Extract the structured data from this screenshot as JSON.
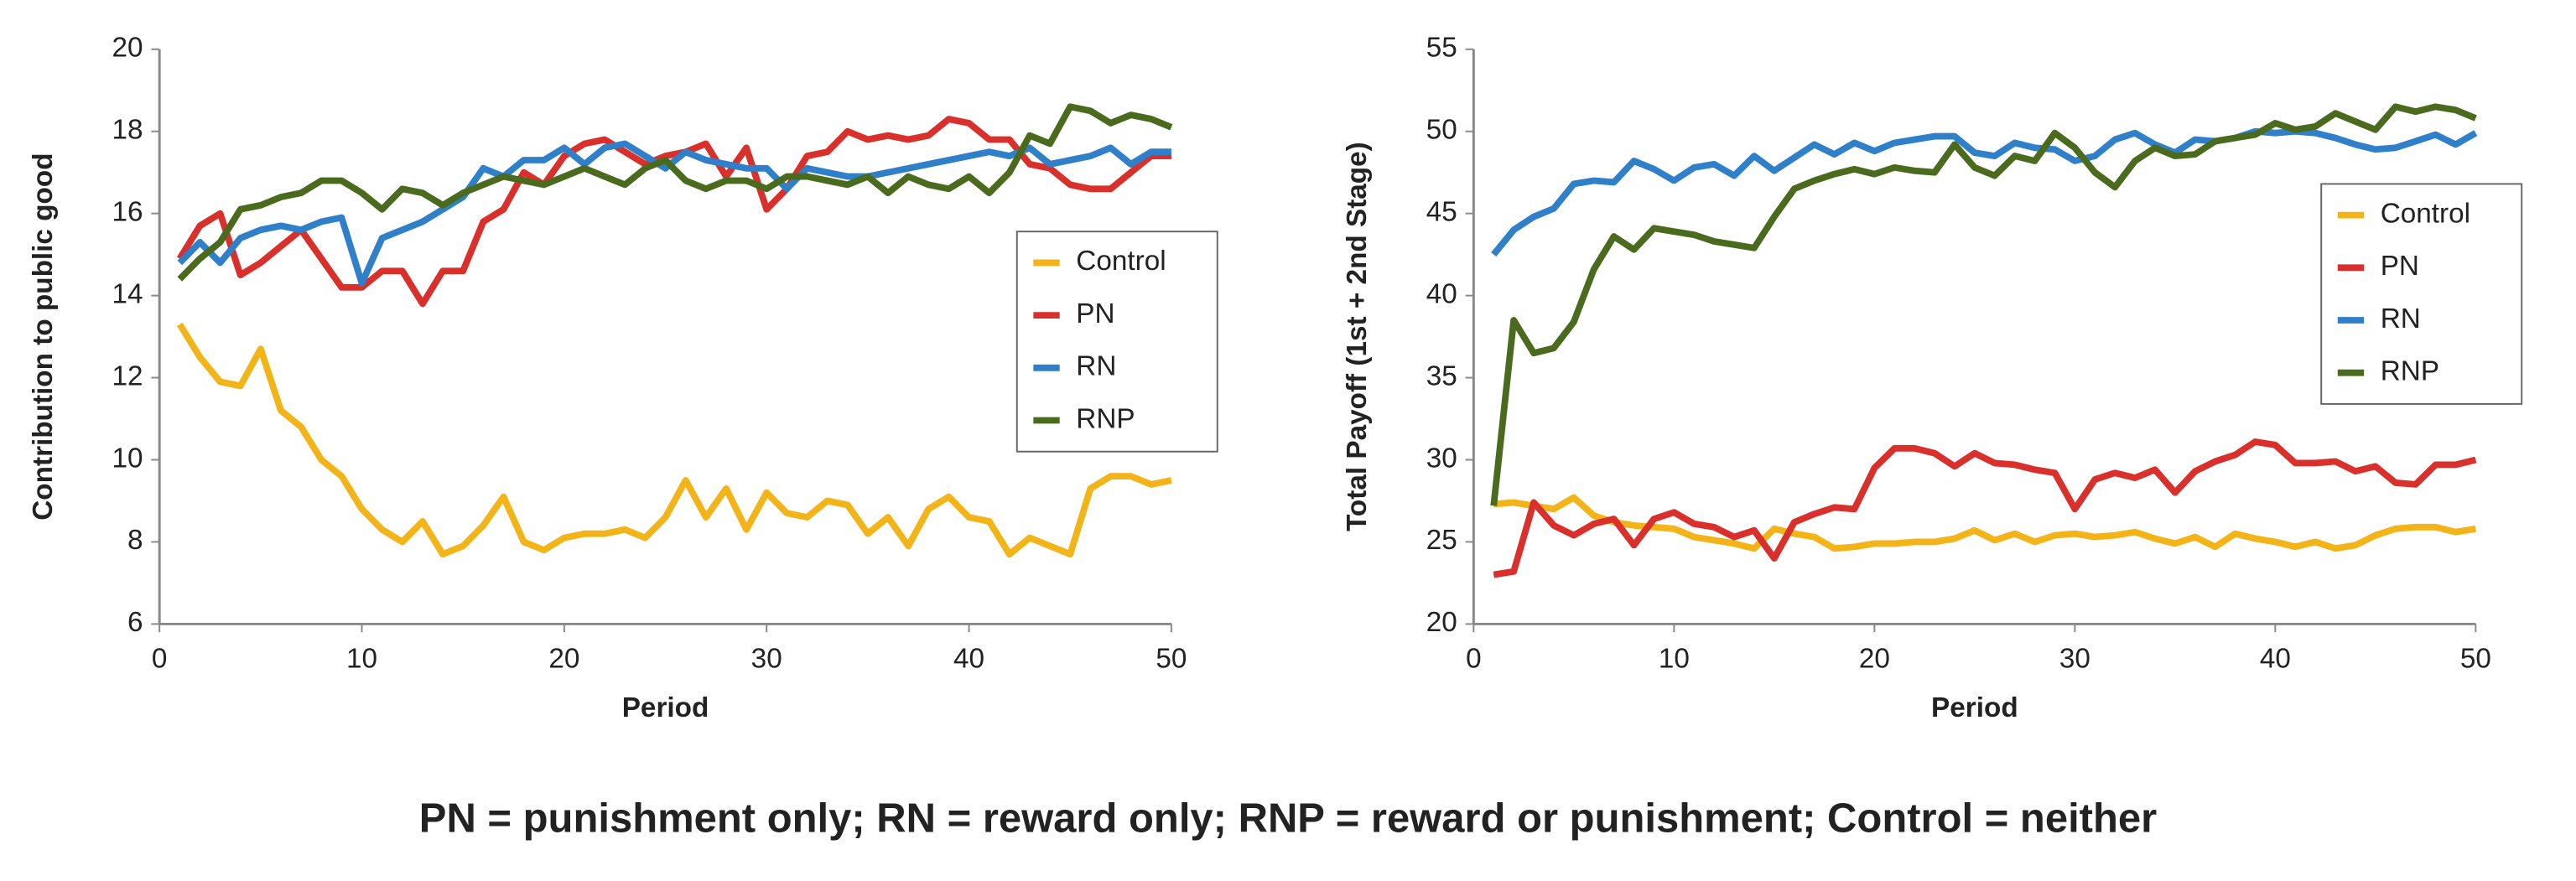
{
  "caption": "PN = punishment only; RN = reward only; RNP = reward or punishment; Control = neither",
  "chart_data": [
    {
      "type": "line",
      "x_label": "Period",
      "y_label": "Contribution to public good",
      "x": [
        1,
        2,
        3,
        4,
        5,
        6,
        7,
        8,
        9,
        10,
        11,
        12,
        13,
        14,
        15,
        16,
        17,
        18,
        19,
        20,
        21,
        22,
        23,
        24,
        25,
        26,
        27,
        28,
        29,
        30,
        31,
        32,
        33,
        34,
        35,
        36,
        37,
        38,
        39,
        40,
        41,
        42,
        43,
        44,
        45,
        46,
        47,
        48,
        49,
        50
      ],
      "xlim": [
        0,
        50
      ],
      "xticks": [
        0,
        10,
        20,
        30,
        40,
        50
      ],
      "ylim": [
        6,
        20
      ],
      "yticks": [
        6,
        8,
        10,
        12,
        14,
        16,
        18,
        20
      ],
      "grid": false,
      "legend": "center right",
      "series": [
        {
          "name": "Control",
          "color": "#f2b418",
          "values": [
            13.3,
            12.5,
            11.9,
            11.8,
            12.7,
            11.2,
            10.8,
            10.0,
            9.6,
            8.8,
            8.3,
            8.0,
            8.5,
            7.7,
            7.9,
            8.4,
            9.1,
            8.0,
            7.8,
            8.1,
            8.2,
            8.2,
            8.3,
            8.1,
            8.6,
            9.5,
            8.6,
            9.3,
            8.3,
            9.2,
            8.7,
            8.6,
            9.0,
            8.9,
            8.2,
            8.6,
            7.9,
            8.8,
            9.1,
            8.6,
            8.5,
            7.7,
            8.1,
            7.9,
            7.7,
            9.3,
            9.6,
            9.6,
            9.4,
            9.5
          ]
        },
        {
          "name": "PN",
          "color": "#d9302b",
          "values": [
            14.9,
            15.7,
            16.0,
            14.5,
            14.8,
            15.2,
            15.6,
            14.9,
            14.2,
            14.2,
            14.6,
            14.6,
            13.8,
            14.6,
            14.6,
            15.8,
            16.1,
            17.0,
            16.7,
            17.4,
            17.7,
            17.8,
            17.5,
            17.2,
            17.4,
            17.5,
            17.7,
            16.9,
            17.6,
            16.1,
            16.6,
            17.4,
            17.5,
            18.0,
            17.8,
            17.9,
            17.8,
            17.9,
            18.3,
            18.2,
            17.8,
            17.8,
            17.2,
            17.1,
            16.7,
            16.6,
            16.6,
            17.0,
            17.4,
            17.4
          ]
        },
        {
          "name": "RN",
          "color": "#2f7fc9",
          "values": [
            14.8,
            15.3,
            14.8,
            15.4,
            15.6,
            15.7,
            15.6,
            15.8,
            15.9,
            14.3,
            15.4,
            15.6,
            15.8,
            16.1,
            16.4,
            17.1,
            16.9,
            17.3,
            17.3,
            17.6,
            17.2,
            17.6,
            17.7,
            17.4,
            17.1,
            17.5,
            17.3,
            17.2,
            17.1,
            17.1,
            16.6,
            17.1,
            17.0,
            16.9,
            16.9,
            17.0,
            17.1,
            17.2,
            17.3,
            17.4,
            17.5,
            17.4,
            17.6,
            17.2,
            17.3,
            17.4,
            17.6,
            17.2,
            17.5,
            17.5
          ]
        },
        {
          "name": "RNP",
          "color": "#4a6b1e",
          "values": [
            14.4,
            14.9,
            15.3,
            16.1,
            16.2,
            16.4,
            16.5,
            16.8,
            16.8,
            16.5,
            16.1,
            16.6,
            16.5,
            16.2,
            16.5,
            16.7,
            16.9,
            16.8,
            16.7,
            16.9,
            17.1,
            16.9,
            16.7,
            17.1,
            17.3,
            16.8,
            16.6,
            16.8,
            16.8,
            16.6,
            16.9,
            16.9,
            16.8,
            16.7,
            16.9,
            16.5,
            16.9,
            16.7,
            16.6,
            16.9,
            16.5,
            17.0,
            17.9,
            17.7,
            18.6,
            18.5,
            18.2,
            18.4,
            18.3,
            18.1
          ]
        }
      ]
    },
    {
      "type": "line",
      "x_label": "Period",
      "y_label": "Total Payoff (1st + 2nd Stage)",
      "x": [
        1,
        2,
        3,
        4,
        5,
        6,
        7,
        8,
        9,
        10,
        11,
        12,
        13,
        14,
        15,
        16,
        17,
        18,
        19,
        20,
        21,
        22,
        23,
        24,
        25,
        26,
        27,
        28,
        29,
        30,
        31,
        32,
        33,
        34,
        35,
        36,
        37,
        38,
        39,
        40,
        41,
        42,
        43,
        44,
        45,
        46,
        47,
        48,
        49,
        50
      ],
      "xlim": [
        0,
        50
      ],
      "xticks": [
        0,
        10,
        20,
        30,
        40,
        50
      ],
      "ylim": [
        20,
        55
      ],
      "yticks": [
        20,
        25,
        30,
        35,
        40,
        45,
        50,
        55
      ],
      "grid": false,
      "legend": "upper right",
      "series": [
        {
          "name": "Control",
          "color": "#f2b418",
          "values": [
            27.3,
            27.4,
            27.2,
            27.0,
            27.7,
            26.6,
            26.2,
            26.0,
            25.9,
            25.8,
            25.3,
            25.1,
            24.9,
            24.6,
            25.8,
            25.5,
            25.3,
            24.6,
            24.7,
            24.9,
            24.9,
            25.0,
            25.0,
            25.2,
            25.7,
            25.1,
            25.5,
            25.0,
            25.4,
            25.5,
            25.3,
            25.4,
            25.6,
            25.2,
            24.9,
            25.3,
            24.7,
            25.5,
            25.2,
            25.0,
            24.7,
            25.0,
            24.6,
            24.8,
            25.4,
            25.8,
            25.9,
            25.9,
            25.6,
            25.8
          ]
        },
        {
          "name": "PN",
          "color": "#d9302b",
          "values": [
            23.0,
            23.2,
            27.4,
            26.0,
            25.4,
            26.1,
            26.4,
            24.8,
            26.4,
            26.8,
            26.1,
            25.9,
            25.3,
            25.7,
            24.0,
            26.2,
            26.7,
            27.1,
            27.0,
            29.5,
            30.7,
            30.7,
            30.4,
            29.6,
            30.4,
            29.8,
            29.7,
            29.4,
            29.2,
            27.0,
            28.8,
            29.2,
            28.9,
            29.4,
            28.0,
            29.3,
            29.9,
            30.3,
            31.1,
            30.9,
            29.8,
            29.8,
            29.9,
            29.3,
            29.6,
            28.6,
            28.5,
            29.7,
            29.7,
            30.0
          ]
        },
        {
          "name": "RN",
          "color": "#2f7fc9",
          "values": [
            42.5,
            44.0,
            44.8,
            45.3,
            46.8,
            47.0,
            46.9,
            48.2,
            47.7,
            47.0,
            47.8,
            48.0,
            47.3,
            48.5,
            47.6,
            48.4,
            49.2,
            48.6,
            49.3,
            48.8,
            49.3,
            49.5,
            49.7,
            49.7,
            48.7,
            48.5,
            49.3,
            49.0,
            48.9,
            48.2,
            48.5,
            49.5,
            49.9,
            49.2,
            48.7,
            49.5,
            49.4,
            49.6,
            50.0,
            49.9,
            50.0,
            49.9,
            49.6,
            49.2,
            48.9,
            49.0,
            49.4,
            49.8,
            49.2,
            49.9
          ]
        },
        {
          "name": "RNP",
          "color": "#4a6b1e",
          "values": [
            27.2,
            38.5,
            36.5,
            36.8,
            38.4,
            41.6,
            43.6,
            42.8,
            44.1,
            43.9,
            43.7,
            43.3,
            43.1,
            42.9,
            44.8,
            46.5,
            47.0,
            47.4,
            47.7,
            47.4,
            47.8,
            47.6,
            47.5,
            49.2,
            47.8,
            47.3,
            48.5,
            48.2,
            49.9,
            49.0,
            47.5,
            46.6,
            48.2,
            49.0,
            48.5,
            48.6,
            49.4,
            49.6,
            49.8,
            50.5,
            50.1,
            50.3,
            51.1,
            50.6,
            50.1,
            51.5,
            51.2,
            51.5,
            51.3,
            50.8
          ]
        }
      ]
    }
  ]
}
